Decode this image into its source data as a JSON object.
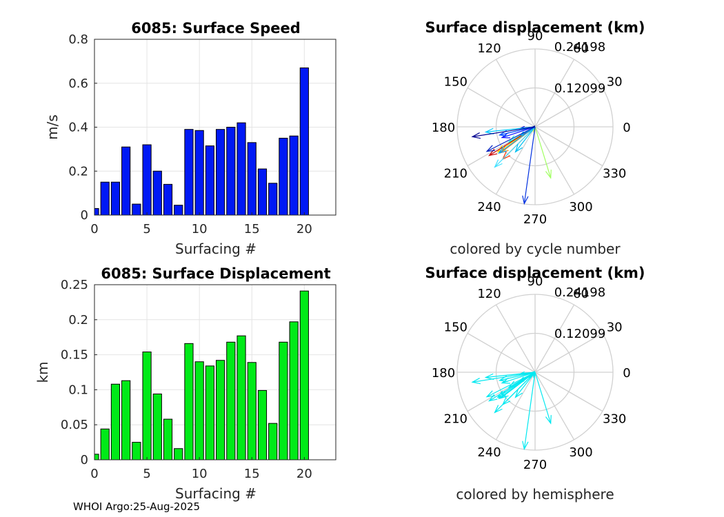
{
  "footer": "WHOI Argo:25-Aug-2025",
  "chart_data": [
    {
      "id": "speed",
      "type": "bar",
      "title": "6085: Surface Speed",
      "xlabel": "Surfacing #",
      "ylabel": "m/s",
      "color": "#0019f5",
      "xlim": [
        0,
        23
      ],
      "ylim": [
        0,
        0.8
      ],
      "xticks": [
        0,
        5,
        10,
        15,
        20
      ],
      "yticks": [
        0,
        0.2,
        0.4,
        0.6,
        0.8
      ],
      "ytick_labels": [
        "0",
        "0.2",
        "0.4",
        "0.6",
        "0.8"
      ],
      "x": [
        0,
        1,
        2,
        3,
        4,
        5,
        6,
        7,
        8,
        9,
        10,
        11,
        12,
        13,
        14,
        15,
        16,
        17,
        18,
        19,
        20
      ],
      "values": [
        0.03,
        0.15,
        0.15,
        0.31,
        0.05,
        0.32,
        0.2,
        0.14,
        0.045,
        0.39,
        0.385,
        0.315,
        0.39,
        0.4,
        0.42,
        0.33,
        0.21,
        0.145,
        0.35,
        0.36,
        0.67
      ]
    },
    {
      "id": "disp",
      "type": "bar",
      "title": "6085: Surface Displacement",
      "xlabel": "Surfacing #",
      "ylabel": "km",
      "color": "#00ea18",
      "xlim": [
        0,
        23
      ],
      "ylim": [
        0,
        0.25
      ],
      "xticks": [
        0,
        5,
        10,
        15,
        20
      ],
      "yticks": [
        0,
        0.05,
        0.1,
        0.15,
        0.2,
        0.25
      ],
      "ytick_labels": [
        "0",
        "0.05",
        "0.1",
        "0.15",
        "0.2",
        "0.25"
      ],
      "x": [
        0,
        1,
        2,
        3,
        4,
        5,
        6,
        7,
        8,
        9,
        10,
        11,
        12,
        13,
        14,
        15,
        16,
        17,
        18,
        19,
        20
      ],
      "values": [
        0.008,
        0.044,
        0.108,
        0.113,
        0.025,
        0.154,
        0.094,
        0.058,
        0.016,
        0.166,
        0.14,
        0.134,
        0.142,
        0.168,
        0.177,
        0.139,
        0.099,
        0.052,
        0.168,
        0.197,
        0.241
      ]
    },
    {
      "id": "compass1",
      "type": "compass",
      "title": "Surface displacement (km)",
      "xlabel": "colored by cycle number",
      "rmax": 0.24198,
      "ring_labels": [
        "0.12099",
        "0.24198"
      ],
      "angle_labels": [
        "0",
        "30",
        "60",
        "90",
        "120",
        "150",
        "180",
        "210",
        "240",
        "270",
        "300",
        "330"
      ],
      "arrows": [
        {
          "angle": 182,
          "length": 0.008,
          "color": "#00008f"
        },
        {
          "angle": 185,
          "length": 0.044,
          "color": "#0000d0"
        },
        {
          "angle": 198,
          "length": 0.108,
          "color": "#0a10ff"
        },
        {
          "angle": 193,
          "length": 0.113,
          "color": "#0050ff"
        },
        {
          "angle": 218,
          "length": 0.025,
          "color": "#0090ff"
        },
        {
          "angle": 186,
          "length": 0.154,
          "color": "#00c8ff"
        },
        {
          "angle": 210,
          "length": 0.094,
          "color": "#20ffe0"
        },
        {
          "angle": 212,
          "length": 0.058,
          "color": "#80ff80"
        },
        {
          "angle": 255,
          "length": 0.016,
          "color": "#d0ff30"
        },
        {
          "angle": 287,
          "length": 0.166,
          "color": "#a0ff60"
        },
        {
          "angle": 214,
          "length": 0.14,
          "color": "#ffd000"
        },
        {
          "angle": 217,
          "length": 0.134,
          "color": "#ff8a00"
        },
        {
          "angle": 225,
          "length": 0.142,
          "color": "#ff3000"
        },
        {
          "angle": 212,
          "length": 0.168,
          "color": "#c80000"
        },
        {
          "angle": 225,
          "length": 0.177,
          "color": "#40e0ff"
        },
        {
          "angle": 216,
          "length": 0.139,
          "color": "#00a0ff"
        },
        {
          "angle": 232,
          "length": 0.099,
          "color": "#00c0f0"
        },
        {
          "angle": 210,
          "length": 0.052,
          "color": "#00b0ff"
        },
        {
          "angle": 207,
          "length": 0.168,
          "color": "#0020c0"
        },
        {
          "angle": 189,
          "length": 0.197,
          "color": "#000090"
        },
        {
          "angle": 262,
          "length": 0.241,
          "color": "#0030e0"
        }
      ]
    },
    {
      "id": "compass2",
      "type": "compass",
      "title": "Surface displacement (km)",
      "xlabel": "colored by hemisphere",
      "rmax": 0.24198,
      "ring_labels": [
        "0.12099",
        "0.24198"
      ],
      "angle_labels": [
        "0",
        "30",
        "60",
        "90",
        "120",
        "150",
        "180",
        "210",
        "240",
        "270",
        "300",
        "330"
      ],
      "arrows": [
        {
          "angle": 182,
          "length": 0.008,
          "color": "#00e8f0"
        },
        {
          "angle": 185,
          "length": 0.044,
          "color": "#00e8f0"
        },
        {
          "angle": 198,
          "length": 0.108,
          "color": "#00e8f0"
        },
        {
          "angle": 193,
          "length": 0.113,
          "color": "#00e8f0"
        },
        {
          "angle": 218,
          "length": 0.025,
          "color": "#00e8f0"
        },
        {
          "angle": 186,
          "length": 0.154,
          "color": "#00e8f0"
        },
        {
          "angle": 210,
          "length": 0.094,
          "color": "#00e8f0"
        },
        {
          "angle": 212,
          "length": 0.058,
          "color": "#00e8f0"
        },
        {
          "angle": 255,
          "length": 0.016,
          "color": "#00e8f0"
        },
        {
          "angle": 287,
          "length": 0.166,
          "color": "#00e8f0"
        },
        {
          "angle": 214,
          "length": 0.14,
          "color": "#00e8f0"
        },
        {
          "angle": 217,
          "length": 0.134,
          "color": "#00e8f0"
        },
        {
          "angle": 225,
          "length": 0.142,
          "color": "#00e8f0"
        },
        {
          "angle": 212,
          "length": 0.168,
          "color": "#00e8f0"
        },
        {
          "angle": 225,
          "length": 0.177,
          "color": "#00e8f0"
        },
        {
          "angle": 216,
          "length": 0.139,
          "color": "#00e8f0"
        },
        {
          "angle": 232,
          "length": 0.099,
          "color": "#00e8f0"
        },
        {
          "angle": 210,
          "length": 0.052,
          "color": "#00e8f0"
        },
        {
          "angle": 207,
          "length": 0.168,
          "color": "#00e8f0"
        },
        {
          "angle": 189,
          "length": 0.197,
          "color": "#00e8f0"
        },
        {
          "angle": 262,
          "length": 0.241,
          "color": "#00e8f0"
        }
      ]
    }
  ]
}
